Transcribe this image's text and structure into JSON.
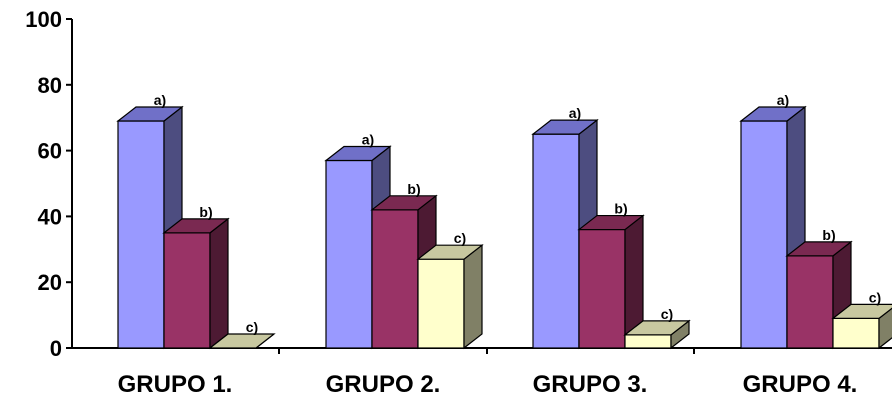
{
  "chart_data": {
    "type": "bar",
    "title": "",
    "xlabel": "",
    "ylabel": "",
    "ylim": [
      0,
      100
    ],
    "yticks": [
      0,
      20,
      40,
      60,
      80,
      100
    ],
    "categories": [
      "GRUPO 1.",
      "GRUPO 2.",
      "GRUPO 3.",
      "GRUPO 4."
    ],
    "series": [
      {
        "label": "a)",
        "color": "#9999ff",
        "side_color": "#4d4d80",
        "top_color": "#7070c8",
        "values": [
          69,
          57,
          65,
          69
        ]
      },
      {
        "label": "b)",
        "color": "#993366",
        "side_color": "#4d1a33",
        "top_color": "#7a2951",
        "values": [
          35,
          42,
          36,
          28
        ]
      },
      {
        "label": "c)",
        "color": "#ffffcc",
        "side_color": "#808066",
        "top_color": "#c8c8a0",
        "values": [
          0,
          27,
          4,
          9
        ]
      }
    ],
    "grid": false,
    "legend": "none",
    "style": "3d-bar"
  }
}
